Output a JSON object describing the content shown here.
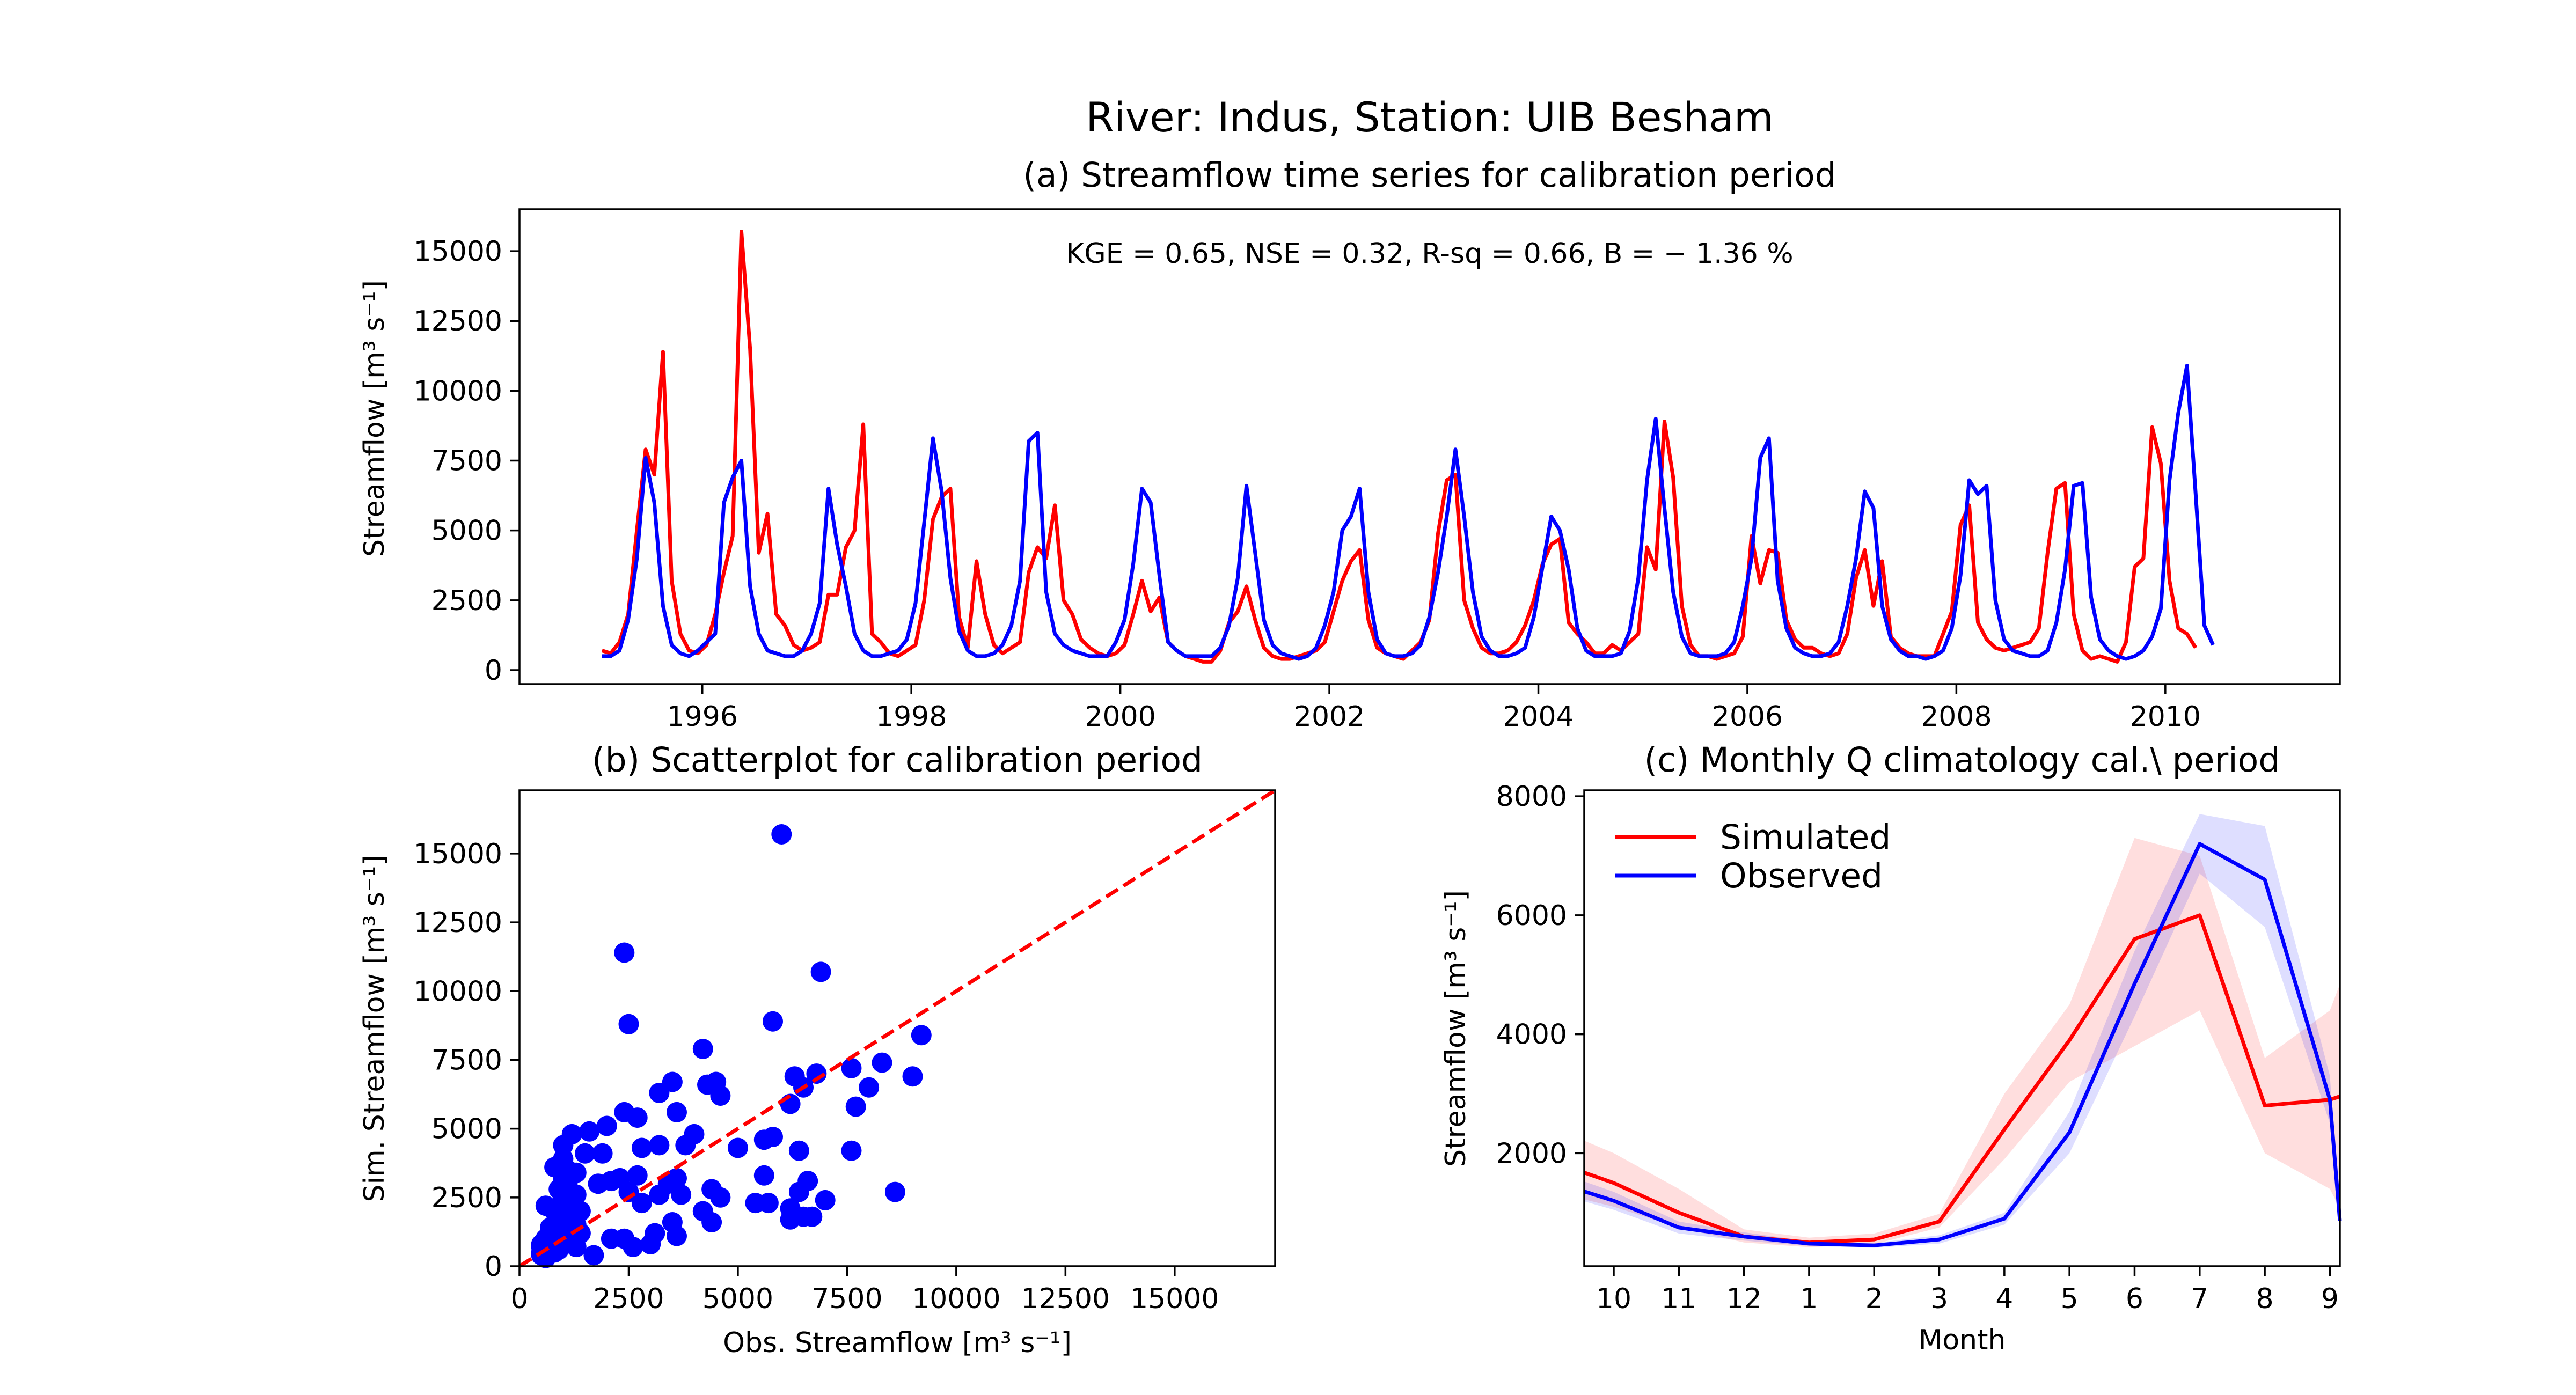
{
  "suptitle": "River: Indus, Station: UIB Besham",
  "colors": {
    "simulated": "#ff0000",
    "observed": "#0000ff"
  },
  "chart_data": [
    {
      "id": "timeseries",
      "type": "line",
      "title": "(a) Streamflow time series for calibration period",
      "xlabel": "",
      "ylabel": "Streamflow [m³ s⁻¹]",
      "annotation": "KGE = 0.65, NSE = 0.32, R-sq = 0.66, B = − 1.36 %",
      "x_start": 1995.04,
      "x_step": 0.0833333,
      "xlim": [
        1994.25,
        2011.67
      ],
      "ylim": [
        -500,
        16500
      ],
      "x_ticks": [
        1996,
        1998,
        2000,
        2002,
        2004,
        2006,
        2008,
        2010
      ],
      "y_ticks": [
        0,
        2500,
        5000,
        7500,
        10000,
        12500,
        15000
      ],
      "series": [
        {
          "name": "Simulated",
          "color": "#ff0000",
          "values": [
            700,
            600,
            1000,
            2000,
            5000,
            7900,
            7000,
            11400,
            3200,
            1300,
            700,
            600,
            900,
            2000,
            3500,
            4800,
            15700,
            11500,
            4200,
            5600,
            2000,
            1600,
            900,
            700,
            800,
            1000,
            2700,
            2700,
            4400,
            5000,
            8800,
            1300,
            1000,
            600,
            500,
            700,
            900,
            2500,
            5400,
            6200,
            6500,
            1900,
            800,
            3900,
            2000,
            900,
            600,
            800,
            1000,
            3500,
            4400,
            4000,
            5900,
            2500,
            2000,
            1100,
            800,
            600,
            500,
            600,
            900,
            2000,
            3200,
            2100,
            2600,
            1000,
            700,
            500,
            400,
            300,
            300,
            700,
            1700,
            2100,
            3000,
            1800,
            800,
            500,
            400,
            400,
            500,
            600,
            700,
            1000,
            2100,
            3200,
            3900,
            4300,
            1800,
            800,
            600,
            500,
            400,
            700,
            1000,
            1800,
            4900,
            6800,
            7000,
            2500,
            1500,
            800,
            600,
            600,
            700,
            1000,
            1600,
            2500,
            3800,
            4500,
            4700,
            1700,
            1300,
            1000,
            600,
            600,
            900,
            700,
            1000,
            1300,
            4400,
            3600,
            8900,
            6900,
            2300,
            900,
            500,
            500,
            400,
            500,
            600,
            1200,
            4800,
            3100,
            4300,
            4200,
            1800,
            1100,
            800,
            800,
            600,
            500,
            600,
            1300,
            3300,
            4300,
            2300,
            3900,
            1200,
            800,
            600,
            500,
            500,
            500,
            1300,
            2100,
            5200,
            5900,
            1700,
            1100,
            800,
            700,
            800,
            900,
            1000,
            1500,
            4200,
            6500,
            6700,
            2000,
            700,
            400,
            500,
            400,
            300,
            1000,
            3700,
            4000,
            8700,
            7400,
            3200,
            1500,
            1300,
            800
          ]
        },
        {
          "name": "Observed",
          "color": "#0000ff",
          "values": [
            500,
            500,
            700,
            1800,
            4000,
            7600,
            6000,
            2300,
            900,
            600,
            500,
            700,
            1000,
            1300,
            6000,
            6900,
            7500,
            3000,
            1300,
            700,
            600,
            500,
            500,
            700,
            1300,
            2400,
            6500,
            4500,
            3000,
            1300,
            700,
            500,
            500,
            600,
            700,
            1100,
            2400,
            5300,
            8300,
            6400,
            3300,
            1400,
            700,
            500,
            500,
            600,
            900,
            1600,
            3200,
            8200,
            8500,
            2800,
            1300,
            900,
            700,
            600,
            500,
            500,
            500,
            1000,
            1800,
            3800,
            6500,
            6000,
            3400,
            1000,
            700,
            500,
            500,
            500,
            500,
            800,
            1600,
            3300,
            6600,
            4200,
            1800,
            900,
            600,
            500,
            400,
            500,
            800,
            1600,
            2800,
            5000,
            5500,
            6500,
            2800,
            1100,
            600,
            500,
            500,
            600,
            900,
            1900,
            3500,
            5500,
            7900,
            5500,
            2800,
            1200,
            700,
            500,
            500,
            600,
            800,
            1900,
            3700,
            5500,
            5000,
            3600,
            1500,
            700,
            500,
            500,
            500,
            600,
            1400,
            3300,
            6800,
            9000,
            5800,
            2800,
            1200,
            600,
            500,
            500,
            500,
            600,
            1000,
            2300,
            4000,
            7600,
            8300,
            3200,
            1500,
            800,
            600,
            500,
            500,
            600,
            1000,
            2300,
            4000,
            6400,
            5800,
            2300,
            1100,
            700,
            500,
            500,
            400,
            500,
            700,
            1500,
            3400,
            6800,
            6300,
            6600,
            2500,
            1100,
            700,
            600,
            500,
            500,
            700,
            1700,
            3600,
            6600,
            6700,
            2600,
            1100,
            700,
            500,
            400,
            500,
            700,
            1200,
            2200,
            6800,
            9200,
            10900,
            6300,
            1600,
            900
          ]
        }
      ]
    },
    {
      "id": "scatter",
      "type": "scatter",
      "title": "(b) Scatterplot for calibration period",
      "xlabel": "Obs. Streamflow [m³ s⁻¹]",
      "ylabel": "Sim. Streamflow [m³ s⁻¹]",
      "xlim": [
        0,
        17300
      ],
      "ylim": [
        0,
        17300
      ],
      "x_ticks": [
        0,
        2500,
        5000,
        7500,
        10000,
        12500,
        15000
      ],
      "y_ticks": [
        0,
        2500,
        5000,
        7500,
        10000,
        12500,
        15000
      ],
      "one_to_one_line": true,
      "points": [
        [
          6000,
          15700
        ],
        [
          2400,
          11400
        ],
        [
          6900,
          10700
        ],
        [
          5800,
          8900
        ],
        [
          2500,
          8800
        ],
        [
          9200,
          8400
        ],
        [
          4200,
          7900
        ],
        [
          8300,
          7400
        ],
        [
          7600,
          7200
        ],
        [
          6800,
          7000
        ],
        [
          9000,
          6900
        ],
        [
          6300,
          6900
        ],
        [
          3500,
          6700
        ],
        [
          4300,
          6600
        ],
        [
          4500,
          6700
        ],
        [
          6500,
          6500
        ],
        [
          8000,
          6500
        ],
        [
          3200,
          6300
        ],
        [
          4600,
          6200
        ],
        [
          7700,
          5800
        ],
        [
          6200,
          5900
        ],
        [
          2400,
          5600
        ],
        [
          3600,
          5600
        ],
        [
          2700,
          5400
        ],
        [
          2000,
          5100
        ],
        [
          1600,
          4900
        ],
        [
          4000,
          4800
        ],
        [
          5800,
          4700
        ],
        [
          1200,
          4800
        ],
        [
          5600,
          4600
        ],
        [
          1000,
          4400
        ],
        [
          3200,
          4400
        ],
        [
          3800,
          4400
        ],
        [
          2800,
          4300
        ],
        [
          5000,
          4300
        ],
        [
          7600,
          4200
        ],
        [
          6400,
          4200
        ],
        [
          1900,
          4100
        ],
        [
          1500,
          4100
        ],
        [
          1000,
          3900
        ],
        [
          800,
          3600
        ],
        [
          1100,
          3500
        ],
        [
          1300,
          3400
        ],
        [
          2700,
          3300
        ],
        [
          3600,
          3200
        ],
        [
          5600,
          3300
        ],
        [
          2100,
          3100
        ],
        [
          1800,
          3000
        ],
        [
          3400,
          3000
        ],
        [
          6600,
          3100
        ],
        [
          1000,
          3200
        ],
        [
          2300,
          3200
        ],
        [
          4400,
          2800
        ],
        [
          1100,
          3000
        ],
        [
          900,
          2800
        ],
        [
          2500,
          2700
        ],
        [
          3200,
          2600
        ],
        [
          6400,
          2700
        ],
        [
          8600,
          2700
        ],
        [
          1300,
          2600
        ],
        [
          3700,
          2600
        ],
        [
          4600,
          2500
        ],
        [
          1000,
          2500
        ],
        [
          7000,
          2400
        ],
        [
          5400,
          2300
        ],
        [
          5700,
          2300
        ],
        [
          1200,
          2300
        ],
        [
          600,
          2200
        ],
        [
          2800,
          2300
        ],
        [
          6200,
          2100
        ],
        [
          4200,
          2000
        ],
        [
          1400,
          2000
        ],
        [
          1100,
          1900
        ],
        [
          6500,
          1800
        ],
        [
          6700,
          1800
        ],
        [
          6200,
          1700
        ],
        [
          4400,
          1600
        ],
        [
          3500,
          1600
        ],
        [
          1300,
          1500
        ],
        [
          800,
          1300
        ],
        [
          3100,
          1200
        ],
        [
          3600,
          1100
        ],
        [
          2100,
          1000
        ],
        [
          2400,
          1000
        ],
        [
          1000,
          1100
        ],
        [
          1100,
          900
        ],
        [
          700,
          1000
        ],
        [
          2600,
          700
        ],
        [
          1700,
          400
        ],
        [
          3000,
          800
        ],
        [
          500,
          800
        ],
        [
          600,
          600
        ],
        [
          500,
          500
        ],
        [
          800,
          500
        ],
        [
          700,
          700
        ],
        [
          500,
          400
        ],
        [
          600,
          300
        ],
        [
          900,
          600
        ],
        [
          1000,
          800
        ],
        [
          1300,
          700
        ],
        [
          700,
          1400
        ],
        [
          900,
          1700
        ],
        [
          1300,
          1300
        ],
        [
          500,
          700
        ],
        [
          600,
          1000
        ],
        [
          1400,
          1200
        ],
        [
          1000,
          1500
        ],
        [
          800,
          2000
        ]
      ]
    },
    {
      "id": "climatology",
      "type": "line",
      "title": "(c) Monthly Q climatology cal.\\ period",
      "xlabel": "Month",
      "ylabel": "Streamflow [m³ s⁻¹]",
      "categories": [
        "10",
        "11",
        "12",
        "1",
        "2",
        "3",
        "4",
        "5",
        "6",
        "7",
        "8",
        "9"
      ],
      "ylim": [
        100,
        8100
      ],
      "y_ticks": [
        2000,
        4000,
        6000,
        8000
      ],
      "legend": "top-left",
      "series": [
        {
          "name": "Simulated",
          "color": "#ff0000",
          "values": [
            1500,
            1000,
            600,
            500,
            550,
            850,
            2400,
            3900,
            5600,
            6000,
            2800,
            2900
          ],
          "band_low": [
            1100,
            750,
            500,
            420,
            470,
            750,
            1900,
            3200,
            3800,
            4400,
            2000,
            1400
          ],
          "band_high": [
            2000,
            1400,
            720,
            580,
            650,
            980,
            3000,
            4500,
            7300,
            7000,
            3600,
            4400
          ]
        },
        {
          "name": "Observed",
          "color": "#0000ff",
          "values": [
            1200,
            750,
            600,
            480,
            450,
            550,
            900,
            2350,
            4850,
            7200,
            6600,
            2900
          ],
          "band_low": [
            1050,
            650,
            530,
            440,
            410,
            480,
            800,
            2000,
            4300,
            6700,
            5800,
            2500
          ],
          "band_high": [
            1350,
            850,
            670,
            520,
            490,
            620,
            1000,
            2700,
            5400,
            7700,
            7500,
            3300
          ]
        }
      ]
    }
  ]
}
